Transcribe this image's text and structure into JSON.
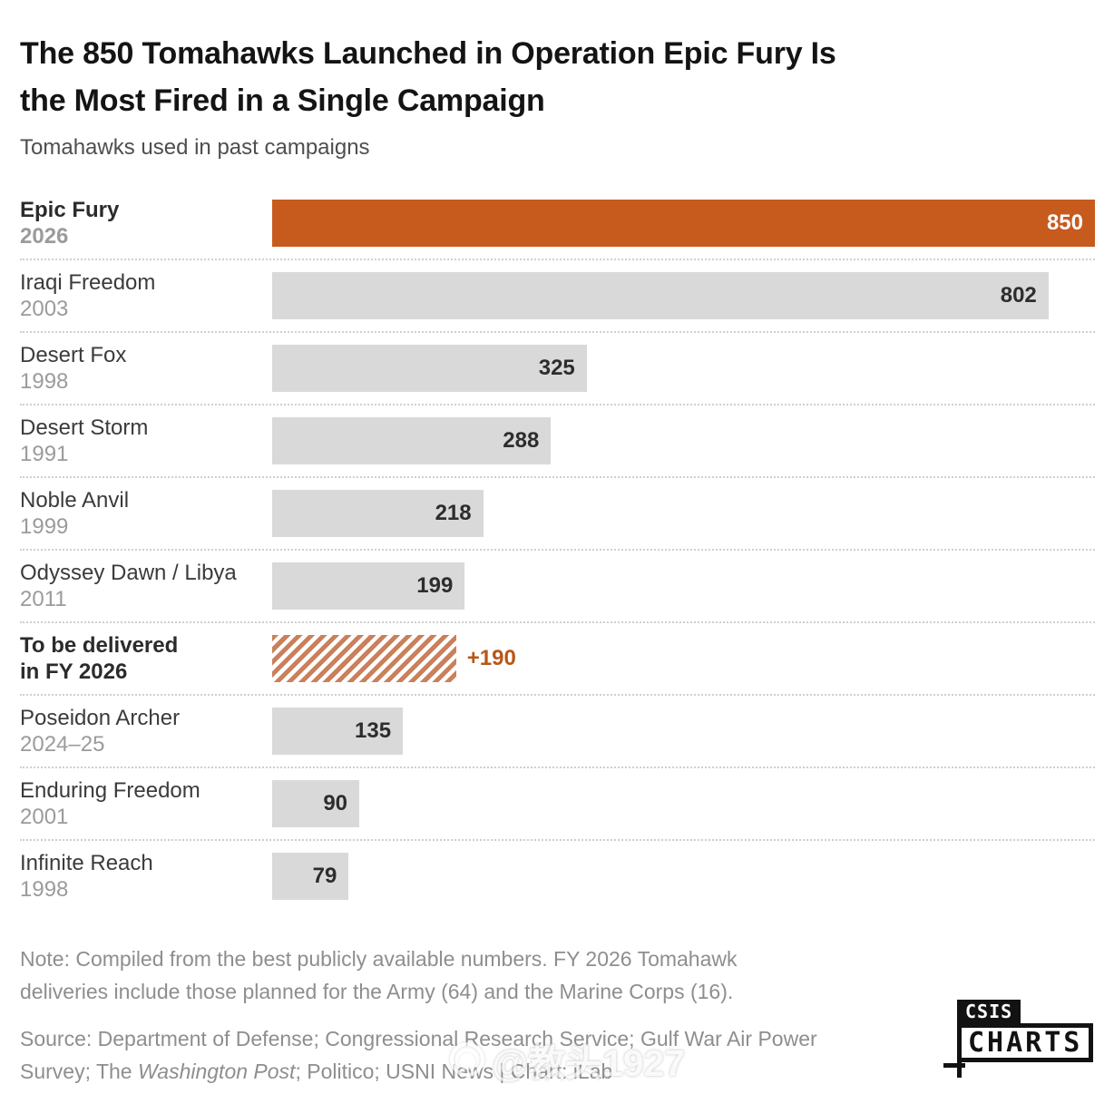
{
  "header": {
    "title_line1": "The 850 Tomahawks Launched in Operation Epic Fury Is",
    "title_line2": "the Most Fired in a Single Campaign",
    "subtitle": "Tomahawks used in past campaigns"
  },
  "colors": {
    "accent": "#C75B1E",
    "accent_text": "#B85718",
    "hatch": "#C9805B",
    "bar_gray": "#D9D9D9",
    "value_text": "#2D2D2D"
  },
  "chart_data": {
    "type": "bar",
    "orientation": "horizontal",
    "title": "The 850 Tomahawks Launched in Operation Epic Fury Is the Most Fired in a Single Campaign",
    "subtitle": "Tomahawks used in past campaigns",
    "value_axis_range": [
      0,
      850
    ],
    "max_value": 850,
    "gridlines": false,
    "rows": [
      {
        "label": "Epic Fury",
        "year": "2026",
        "value": 850,
        "value_label": "850",
        "variant": "highlight",
        "bold": true,
        "year_style": "year",
        "value_position": "inside"
      },
      {
        "label": "Iraqi Freedom",
        "year": "2003",
        "value": 802,
        "value_label": "802",
        "variant": "default",
        "bold": false,
        "year_style": "year",
        "value_position": "inside"
      },
      {
        "label": "Desert Fox",
        "year": "1998",
        "value": 325,
        "value_label": "325",
        "variant": "default",
        "bold": false,
        "year_style": "year",
        "value_position": "inside"
      },
      {
        "label": "Desert Storm",
        "year": "1991",
        "value": 288,
        "value_label": "288",
        "variant": "default",
        "bold": false,
        "year_style": "year",
        "value_position": "inside"
      },
      {
        "label": "Noble Anvil",
        "year": "1999",
        "value": 218,
        "value_label": "218",
        "variant": "default",
        "bold": false,
        "year_style": "year",
        "value_position": "inside"
      },
      {
        "label": "Odyssey Dawn / Libya",
        "year": "2011",
        "value": 199,
        "value_label": "199",
        "variant": "default",
        "bold": false,
        "year_style": "year",
        "value_position": "inside"
      },
      {
        "label": "To be delivered",
        "year": "in FY 2026",
        "value": 190,
        "value_label": "+190",
        "variant": "hatched",
        "bold": true,
        "year_style": "label",
        "value_position": "outside"
      },
      {
        "label": "Poseidon Archer",
        "year": "2024–25",
        "value": 135,
        "value_label": "135",
        "variant": "default",
        "bold": false,
        "year_style": "year",
        "value_position": "inside"
      },
      {
        "label": "Enduring Freedom",
        "year": "2001",
        "value": 90,
        "value_label": "90",
        "variant": "default",
        "bold": false,
        "year_style": "year",
        "value_position": "inside"
      },
      {
        "label": "Infinite Reach",
        "year": "1998",
        "value": 79,
        "value_label": "79",
        "variant": "default",
        "bold": false,
        "year_style": "year",
        "value_position": "inside"
      }
    ]
  },
  "footer": {
    "note_line1": "Note: Compiled from the best publicly available numbers. FY 2026 Tomahawk",
    "note_line2": "deliveries include those planned for the Army (64) and the Marine Corps (16).",
    "source_line1": "Source: Department of Defense; Congressional Research Service; Gulf War Air Power",
    "source_line2_pre": "Survey; The ",
    "source_line2_italic": "Washington Post",
    "source_line2_post": "; Politico; USNI News | Chart: iLab"
  },
  "logo": {
    "top": "CSIS",
    "bottom": "CHARTS"
  },
  "watermark": {
    "text": "@教头1927"
  }
}
